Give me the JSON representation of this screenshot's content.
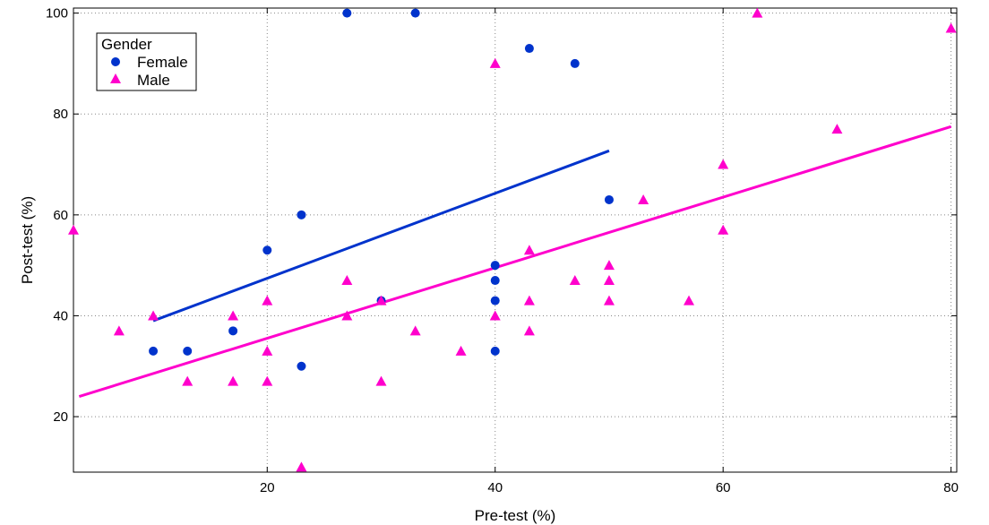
{
  "chart_data": {
    "type": "scatter",
    "xlabel": "Pre-test (%)",
    "ylabel": "Post-test (%)",
    "xlim": [
      3,
      80.5
    ],
    "ylim": [
      9,
      101
    ],
    "xticks": [
      20,
      40,
      60,
      80
    ],
    "yticks": [
      20,
      40,
      60,
      80,
      100
    ],
    "grid": true,
    "legend": {
      "title": "Gender",
      "placement": "top-left"
    },
    "series": [
      {
        "name": "Female",
        "marker": "circle",
        "color": "#0033cc",
        "points": [
          [
            10,
            33
          ],
          [
            13,
            33
          ],
          [
            17,
            37
          ],
          [
            20,
            53
          ],
          [
            23,
            60
          ],
          [
            23,
            30
          ],
          [
            27,
            100
          ],
          [
            30,
            43
          ],
          [
            33,
            100
          ],
          [
            40,
            50
          ],
          [
            40,
            47
          ],
          [
            40,
            43
          ],
          [
            40,
            33
          ],
          [
            43,
            93
          ],
          [
            47,
            90
          ],
          [
            50,
            63
          ]
        ],
        "fit": {
          "x": [
            10,
            50
          ],
          "y": [
            39,
            72.7
          ]
        }
      },
      {
        "name": "Male",
        "marker": "triangle",
        "color": "#ff00cc",
        "points": [
          [
            3,
            57
          ],
          [
            7,
            37
          ],
          [
            10,
            40
          ],
          [
            13,
            27
          ],
          [
            17,
            40
          ],
          [
            17,
            27
          ],
          [
            20,
            43
          ],
          [
            20,
            33
          ],
          [
            20,
            27
          ],
          [
            23,
            10
          ],
          [
            27,
            47
          ],
          [
            27,
            40
          ],
          [
            30,
            43
          ],
          [
            30,
            27
          ],
          [
            33,
            37
          ],
          [
            37,
            33
          ],
          [
            40,
            90
          ],
          [
            40,
            40
          ],
          [
            43,
            53
          ],
          [
            43,
            43
          ],
          [
            43,
            37
          ],
          [
            47,
            47
          ],
          [
            50,
            50
          ],
          [
            50,
            47
          ],
          [
            50,
            43
          ],
          [
            53,
            63
          ],
          [
            57,
            43
          ],
          [
            60,
            70
          ],
          [
            60,
            57
          ],
          [
            63,
            100
          ],
          [
            70,
            77
          ],
          [
            80,
            97
          ]
        ],
        "fit": {
          "x": [
            3.5,
            80
          ],
          "y": [
            24,
            77.5
          ]
        }
      }
    ]
  }
}
